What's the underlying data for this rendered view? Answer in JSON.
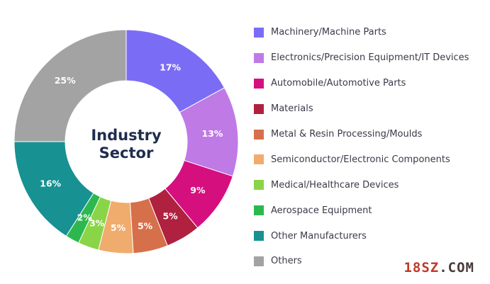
{
  "chart_data": {
    "type": "pie",
    "variant": "donut",
    "title": "Industry Sector",
    "title_lines": [
      "Industry",
      "Sector"
    ],
    "slices": [
      {
        "label": "Machinery/Machine Parts",
        "value": 17,
        "display": "17%",
        "color": "#7b6cf6"
      },
      {
        "label": "Electronics/Precision Equipment/IT Devices",
        "value": 13,
        "display": "13%",
        "color": "#bf7ae6"
      },
      {
        "label": "Automobile/Automotive Parts",
        "value": 9,
        "display": "9%",
        "color": "#d60f7f"
      },
      {
        "label": "Materials",
        "value": 5,
        "display": "5%",
        "color": "#b0203f"
      },
      {
        "label": "Metal & Resin Processing/Moulds",
        "value": 5,
        "display": "5%",
        "color": "#d6704a"
      },
      {
        "label": "Semiconductor/Electronic Components",
        "value": 5,
        "display": "5%",
        "color": "#f0ac6c"
      },
      {
        "label": "Medical/Healthcare Devices",
        "value": 3,
        "display": "3%",
        "color": "#8ad447"
      },
      {
        "label": "Aerospace Equipment",
        "value": 2,
        "display": "2%",
        "color": "#2cb84f"
      },
      {
        "label": "Other Manufacturers",
        "value": 16,
        "display": "16%",
        "color": "#179191"
      },
      {
        "label": "Others",
        "value": 25,
        "display": "25%",
        "color": "#a3a3a3"
      }
    ],
    "legend_position": "right"
  },
  "watermark": {
    "part1": "18SZ",
    "part2": ".COM",
    "color": "#c0392b"
  }
}
